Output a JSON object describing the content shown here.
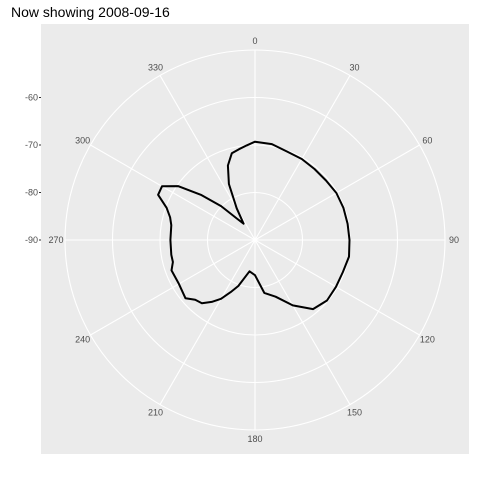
{
  "title": "Now showing 2008-09-16",
  "chart_data": {
    "type": "line",
    "coordinate_system": "polar",
    "title": "Now showing 2008-09-16",
    "xlabel": "",
    "ylabel": "",
    "theta_ticks": [
      "0",
      "30",
      "60",
      "90",
      "120",
      "150",
      "180",
      "210",
      "240",
      "270",
      "300",
      "330"
    ],
    "theta_range": [
      0,
      360
    ],
    "radial_ticks": [
      "-60",
      "-70",
      "-80",
      "-90"
    ],
    "radial_range": [
      -90,
      -50
    ],
    "grid": true,
    "series": [
      {
        "color": "#000000",
        "x": [
          0,
          10,
          20,
          30,
          40,
          50,
          60,
          70,
          80,
          90,
          100,
          110,
          120,
          130,
          140,
          150,
          160,
          170,
          180,
          190,
          200,
          205,
          210,
          215,
          220,
          225,
          230,
          240,
          250,
          255,
          260,
          270,
          280,
          285,
          290,
          295,
          300,
          305,
          310,
          315,
          320,
          325,
          330,
          335,
          340,
          345,
          350,
          355,
          360
        ],
        "y": [
          -69.3,
          -69.5,
          -70.2,
          -70.3,
          -70.5,
          -70.5,
          -70.2,
          -70.2,
          -70.2,
          -70.1,
          -69.9,
          -70.3,
          -70.3,
          -70.2,
          -71,
          -74.1,
          -77.3,
          -78.7,
          -82.6,
          -83.3,
          -79.7,
          -77.9,
          -75.7,
          -74.1,
          -72.6,
          -72.2,
          -70.9,
          -71.5,
          -71.3,
          -72.1,
          -72.1,
          -72.2,
          -72.1,
          -71.5,
          -70.2,
          -67.5,
          -67.4,
          -70.2,
          -75.3,
          -79.9,
          -84.2,
          -85.8,
          -82.3,
          -77,
          -73.3,
          -71.1,
          -70.6,
          -70,
          -69.3
        ]
      }
    ]
  }
}
